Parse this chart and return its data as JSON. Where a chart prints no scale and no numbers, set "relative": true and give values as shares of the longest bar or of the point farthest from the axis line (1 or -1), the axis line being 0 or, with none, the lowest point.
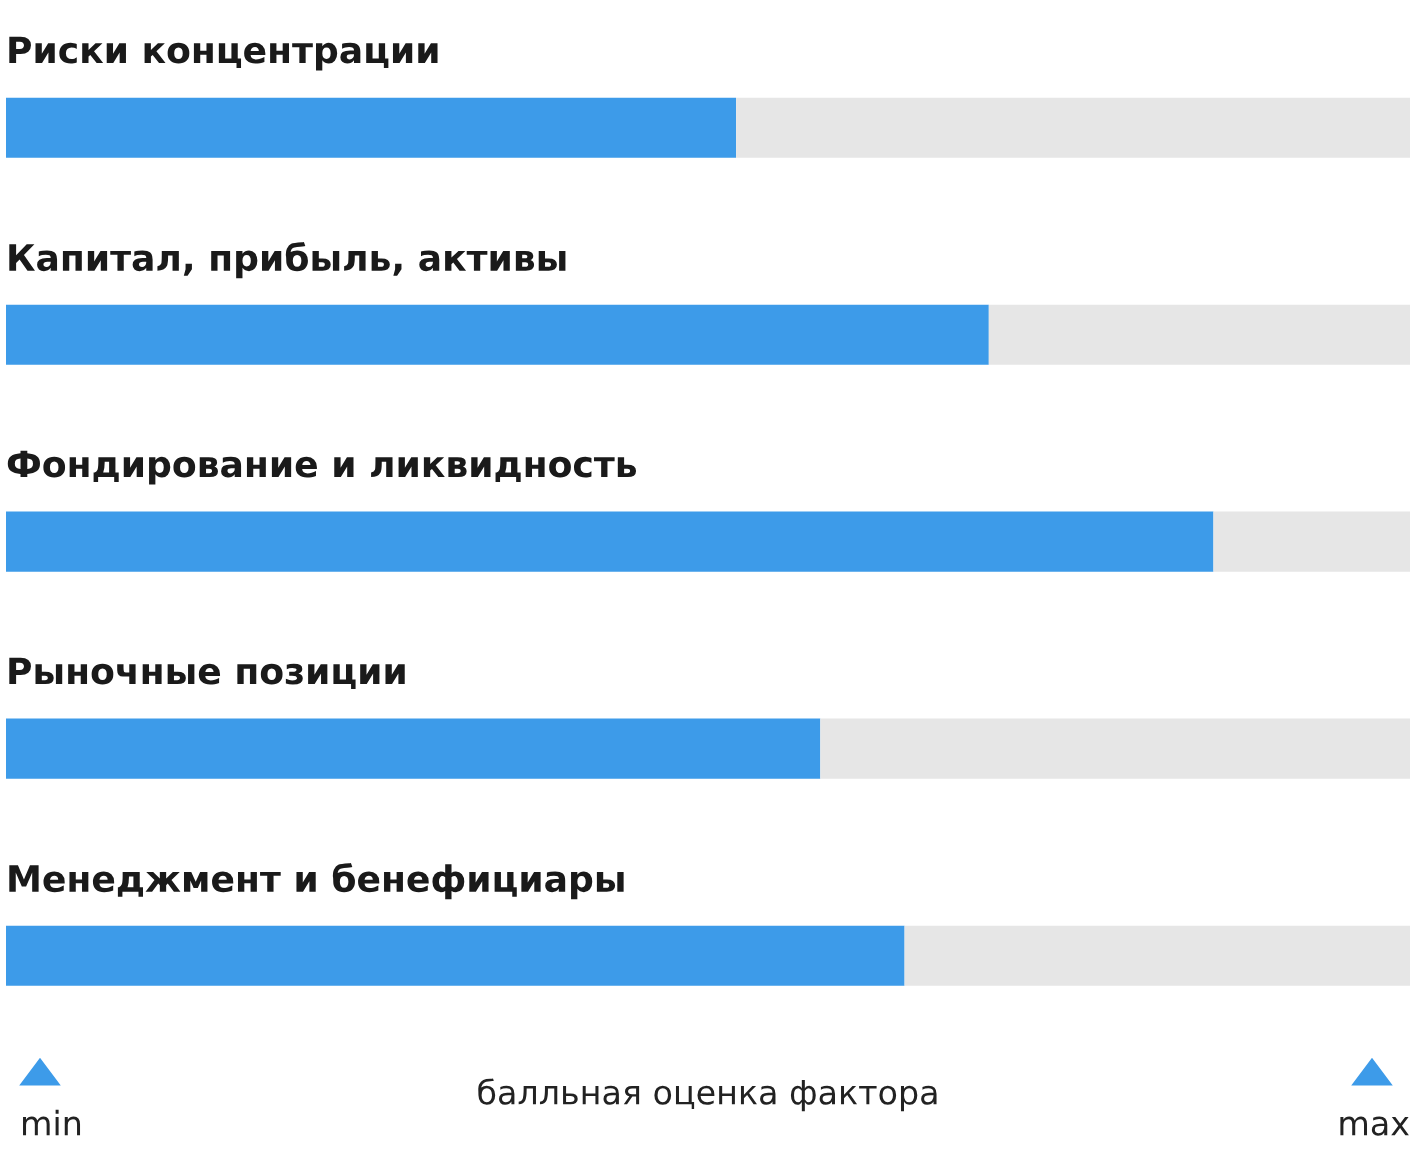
{
  "chart_data": {
    "type": "bar",
    "orientation": "horizontal",
    "stacked": true,
    "categories": [
      "Риски концентрации",
      "Капитал, прибыль, активы",
      "Фондирование и ликвидность",
      "Рыночные позиции",
      "Менеджмент и бенефициары"
    ],
    "series": [
      {
        "color": "#3d9be9",
        "values": [
          0.52,
          0.7,
          0.86,
          0.58,
          0.64
        ]
      },
      {
        "color": "#e6e6e6",
        "values": [
          0.48,
          0.3,
          0.14,
          0.42,
          0.36
        ]
      }
    ],
    "relative": true,
    "annotations": [
      "min",
      "max"
    ],
    "xlabel": "балльная оценка фактора"
  }
}
